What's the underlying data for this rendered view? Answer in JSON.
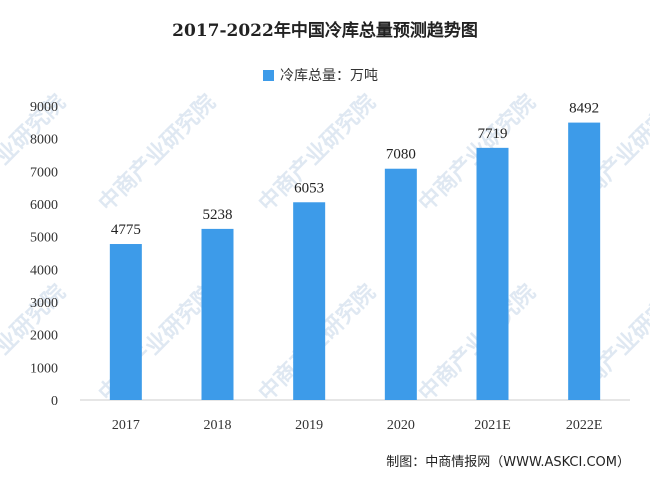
{
  "chart_data": {
    "type": "bar",
    "title": "2017-2022年中国冷库总量预测趋势图",
    "categories": [
      "2017",
      "2018",
      "2019",
      "2020",
      "2021E",
      "2022E"
    ],
    "series": [
      {
        "name": "冷库总量：万吨",
        "values": [
          4775,
          5238,
          6053,
          7080,
          7719,
          8492
        ]
      }
    ],
    "data_labels": [
      "4775",
      "5238",
      "6053",
      "7080",
      "7719",
      "8492"
    ],
    "ylim": [
      0,
      9000
    ],
    "yticks": [
      0,
      1000,
      2000,
      3000,
      4000,
      5000,
      6000,
      7000,
      8000,
      9000
    ],
    "ytick_labels": [
      "0",
      "1000",
      "2000",
      "3000",
      "4000",
      "5000",
      "6000",
      "7000",
      "8000",
      "9000"
    ],
    "legend_position": "top-center",
    "grid": false,
    "bar_color": "#3d9be9"
  },
  "source": "制图：中商情报网（WWW.ASKCI.COM）",
  "watermark": "中商产业研究院"
}
